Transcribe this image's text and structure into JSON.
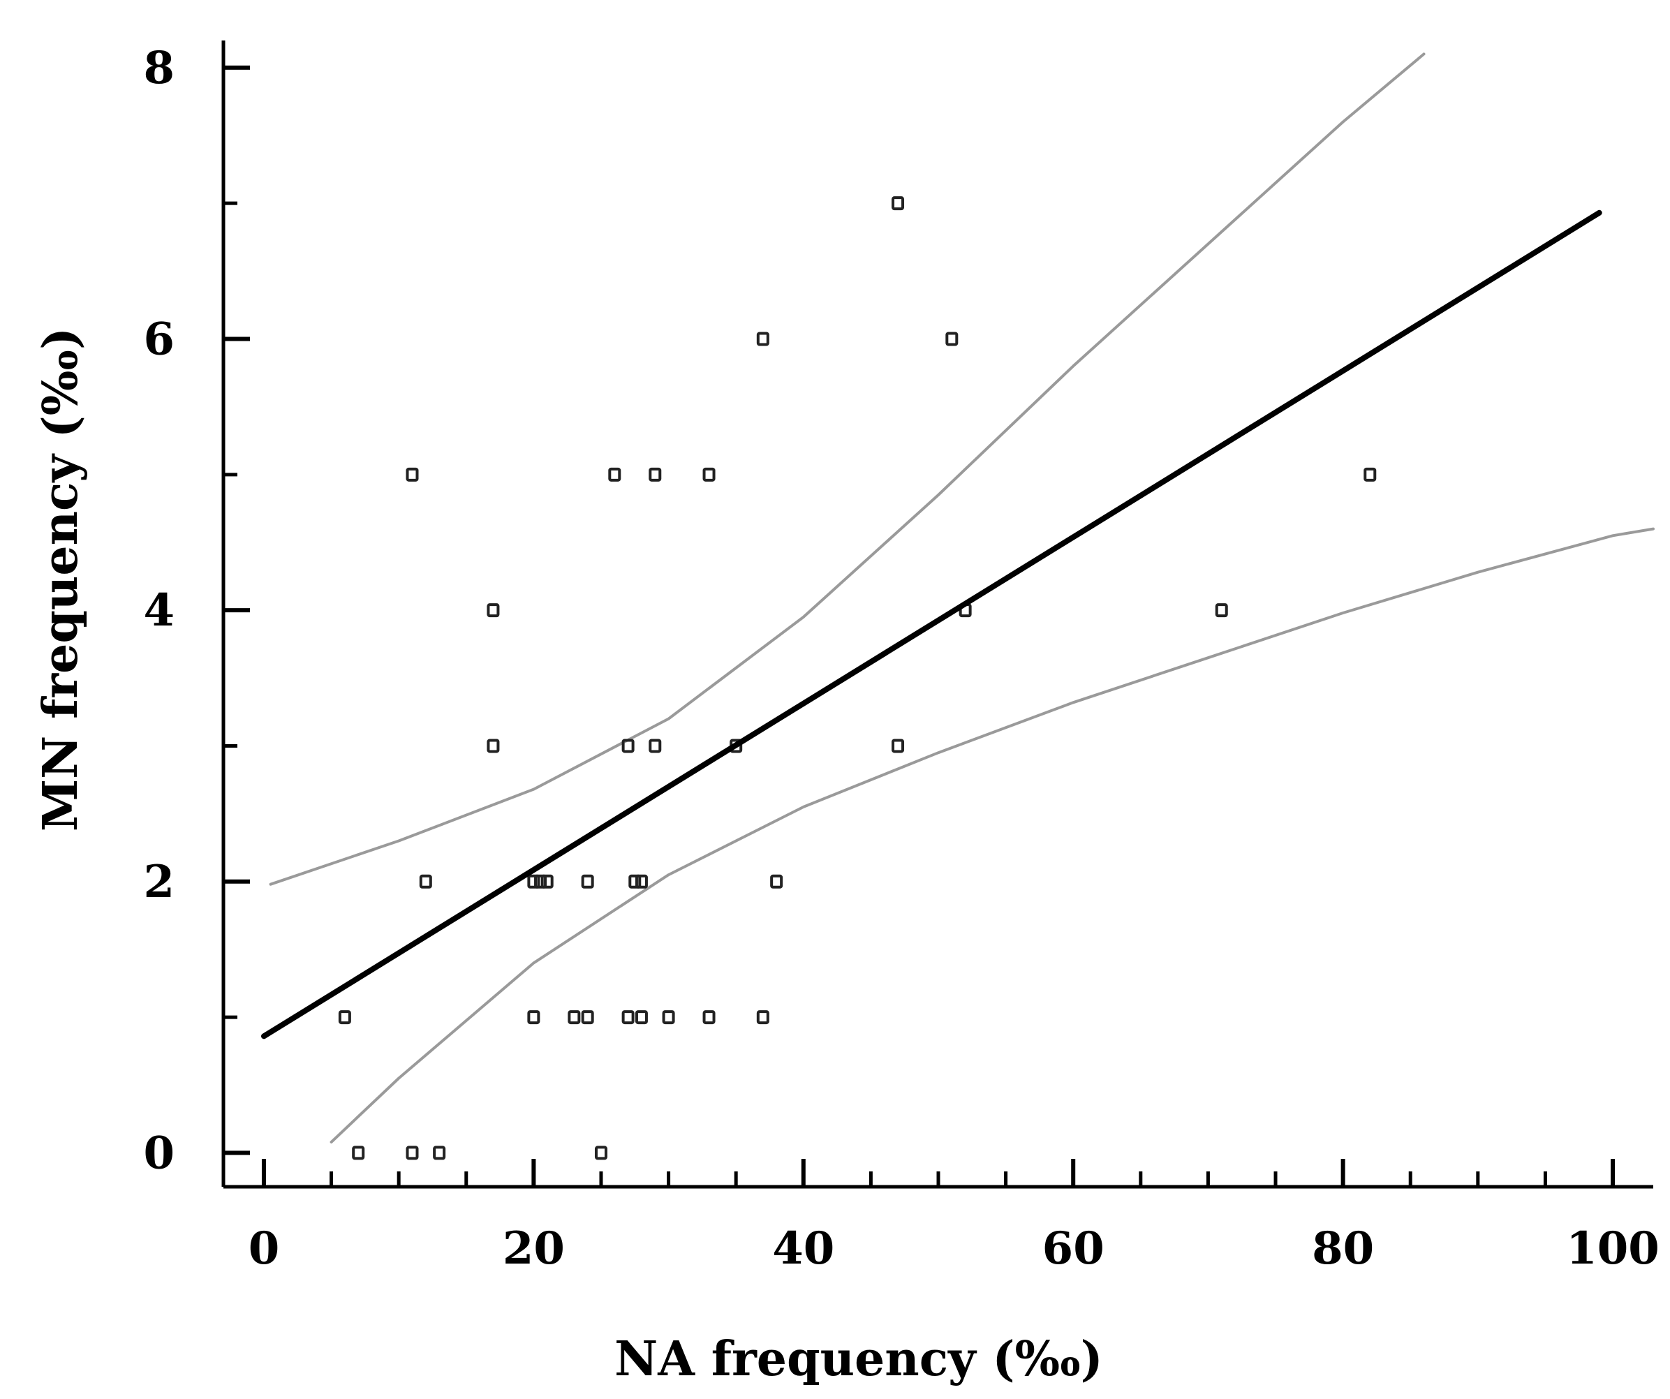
{
  "chart_data": {
    "type": "scatter",
    "title": "",
    "xlabel": "NA frequency (‰)",
    "ylabel": "MN frequency (‰)",
    "xlim": [
      -3,
      103
    ],
    "ylim": [
      -0.25,
      8.2
    ],
    "x_ticks": [
      0,
      20,
      40,
      60,
      80,
      100
    ],
    "y_ticks": [
      0,
      2,
      4,
      6,
      8
    ],
    "x_minor_step": 5,
    "y_minor_step": 1,
    "grid": false,
    "legend": "none",
    "colors": {
      "points": "#222222",
      "regression": "#000000",
      "confidence": "#9a9a9a"
    },
    "series": [
      {
        "name": "observations",
        "kind": "scatter",
        "points": [
          [
            7,
            0
          ],
          [
            11,
            0
          ],
          [
            13,
            0
          ],
          [
            25,
            0
          ],
          [
            6,
            1
          ],
          [
            20,
            1
          ],
          [
            23,
            1
          ],
          [
            24,
            1
          ],
          [
            27,
            1
          ],
          [
            28,
            1
          ],
          [
            30,
            1
          ],
          [
            33,
            1
          ],
          [
            37,
            1
          ],
          [
            12,
            2
          ],
          [
            20,
            2
          ],
          [
            20.5,
            2
          ],
          [
            21,
            2
          ],
          [
            24,
            2
          ],
          [
            27.5,
            2
          ],
          [
            28,
            2
          ],
          [
            38,
            2
          ],
          [
            17,
            3
          ],
          [
            27,
            3
          ],
          [
            29,
            3
          ],
          [
            35,
            3
          ],
          [
            47,
            3
          ],
          [
            17,
            4
          ],
          [
            52,
            4
          ],
          [
            71,
            4
          ],
          [
            11,
            5
          ],
          [
            26,
            5
          ],
          [
            29,
            5
          ],
          [
            33,
            5
          ],
          [
            82,
            5
          ],
          [
            37,
            6
          ],
          [
            51,
            6
          ],
          [
            47,
            7
          ]
        ]
      },
      {
        "name": "regression line",
        "kind": "line",
        "points": [
          [
            0,
            0.86
          ],
          [
            99,
            6.93
          ]
        ]
      },
      {
        "name": "upper 95% confidence band",
        "kind": "line",
        "points": [
          [
            0.5,
            1.98
          ],
          [
            10,
            2.3
          ],
          [
            20,
            2.68
          ],
          [
            30,
            3.2
          ],
          [
            40,
            3.95
          ],
          [
            50,
            4.85
          ],
          [
            60,
            5.8
          ],
          [
            70,
            6.7
          ],
          [
            80,
            7.6
          ],
          [
            86,
            8.1
          ]
        ]
      },
      {
        "name": "lower 95% confidence band",
        "kind": "line",
        "points": [
          [
            5,
            0.08
          ],
          [
            10,
            0.55
          ],
          [
            20,
            1.4
          ],
          [
            30,
            2.05
          ],
          [
            40,
            2.55
          ],
          [
            50,
            2.95
          ],
          [
            60,
            3.32
          ],
          [
            70,
            3.65
          ],
          [
            80,
            3.98
          ],
          [
            90,
            4.28
          ],
          [
            100,
            4.55
          ],
          [
            103,
            4.6
          ]
        ]
      }
    ]
  }
}
